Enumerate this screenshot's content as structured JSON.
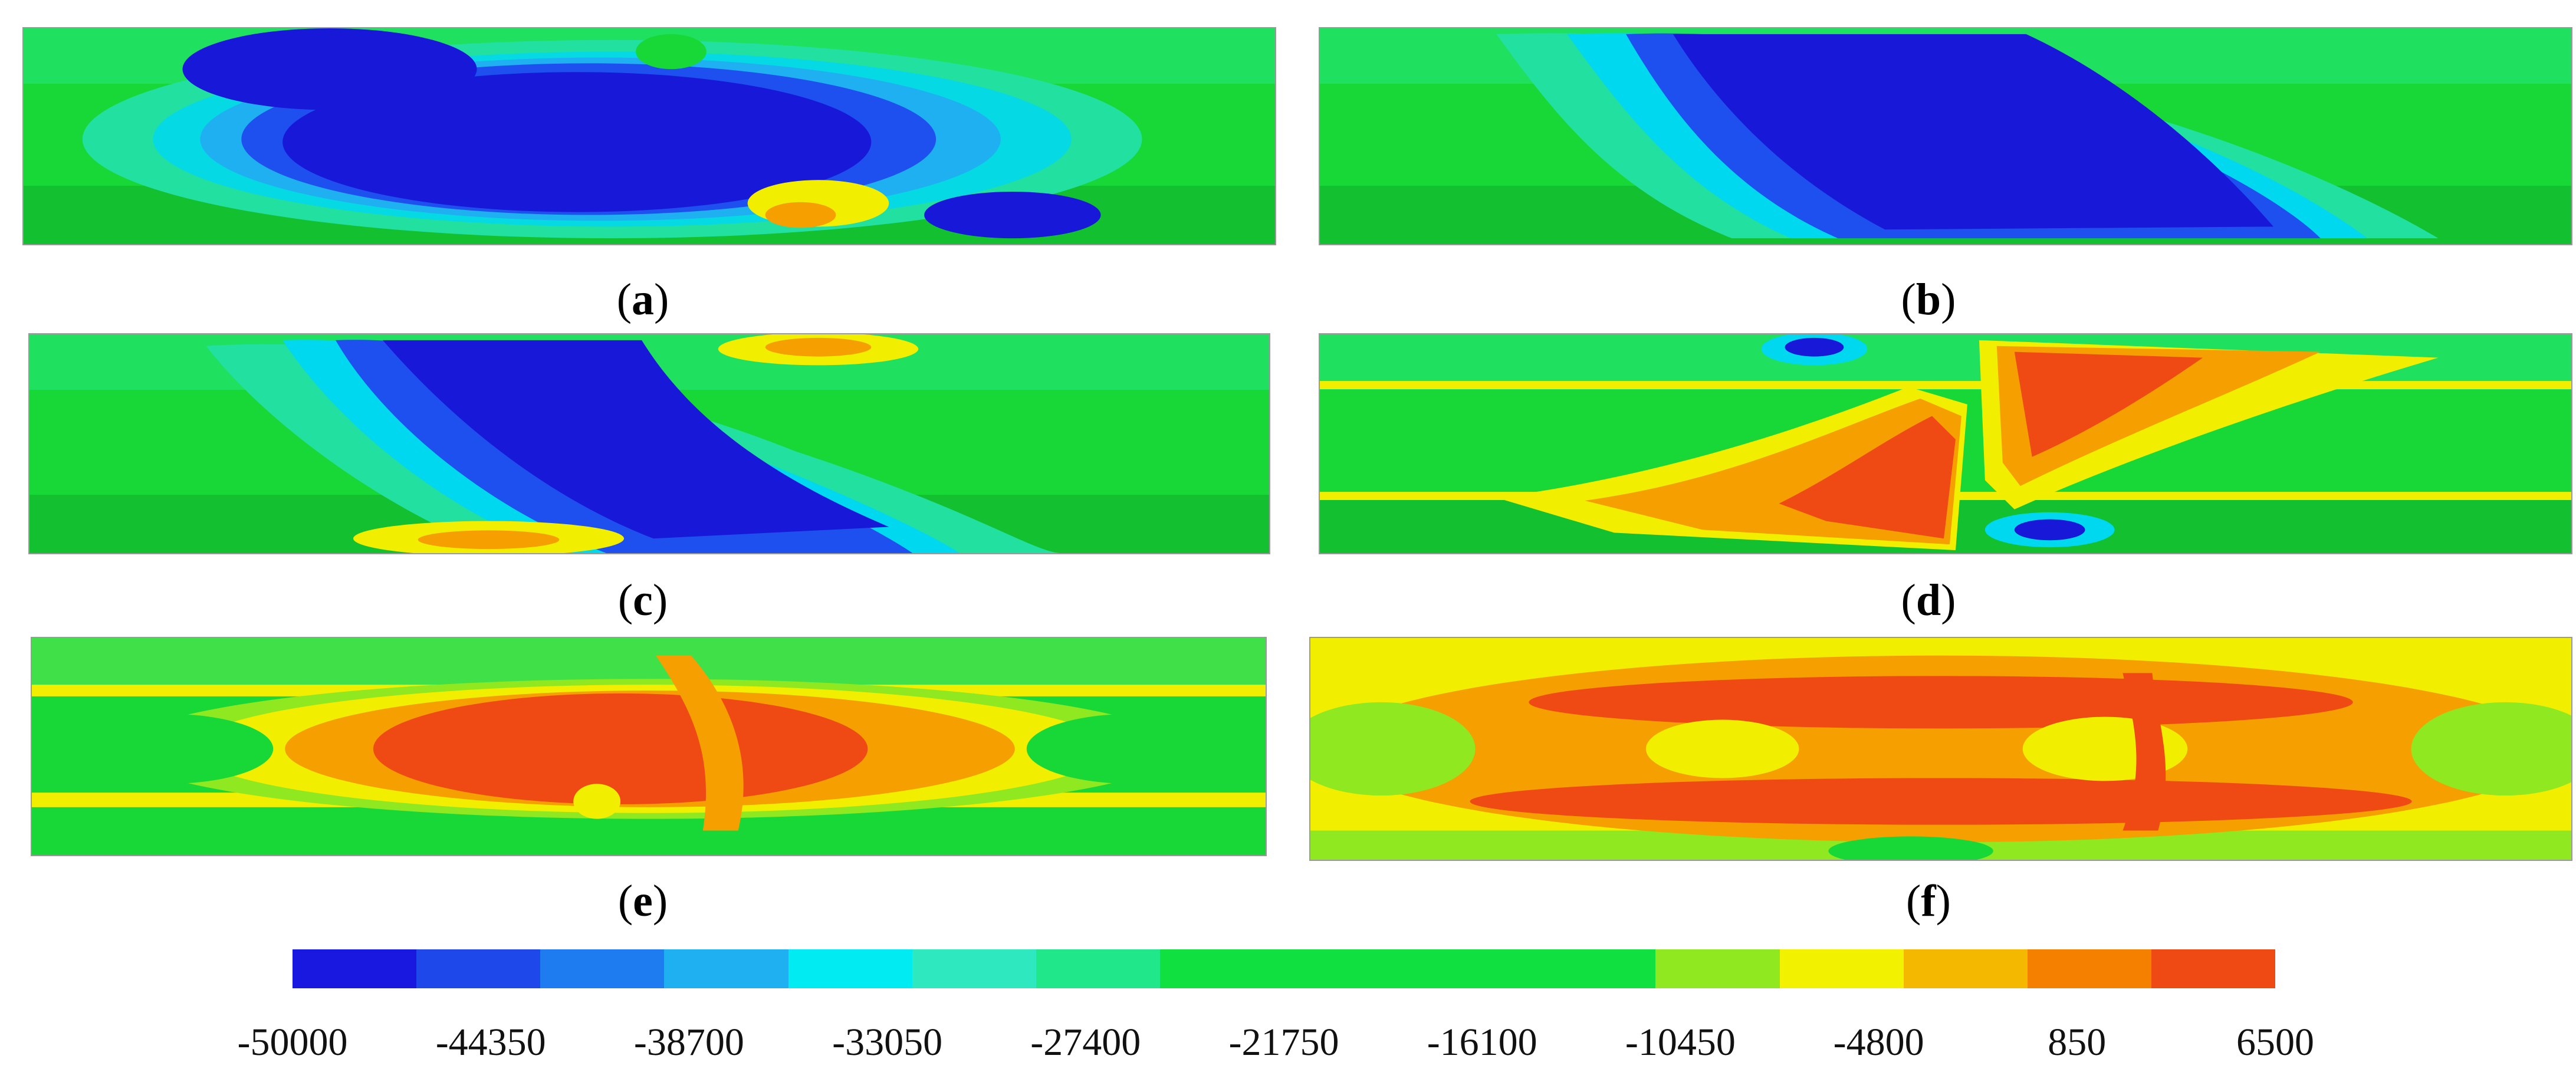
{
  "panels": [
    {
      "id": "a",
      "letter": "a"
    },
    {
      "id": "b",
      "letter": "b"
    },
    {
      "id": "c",
      "letter": "c"
    },
    {
      "id": "d",
      "letter": "d"
    },
    {
      "id": "e",
      "letter": "e"
    },
    {
      "id": "f",
      "letter": "f"
    }
  ],
  "colorbar": {
    "colors": [
      "#1818e0",
      "#1f48ea",
      "#1f7cf0",
      "#1fb0f2",
      "#00ecf2",
      "#2ee8c0",
      "#20e88a",
      "#10e040",
      "#10e040",
      "#10e040",
      "#10e040",
      "#8fe820",
      "#f2f200",
      "#f5b800",
      "#f58000",
      "#f04a14"
    ],
    "ticks": [
      "-50000",
      "-44350",
      "-38700",
      "-33050",
      "-27400",
      "-21750",
      "-16100",
      "-10450",
      "-4800",
      "850",
      "6500"
    ]
  },
  "palette": {
    "deep_blue": "#1818d8",
    "blue": "#1e50f0",
    "cyan": "#00d8f0",
    "teal": "#22e0a0",
    "green": "#18d838",
    "dark_green": "#12c030",
    "lime": "#90e820",
    "yellow": "#f2ee00",
    "orange": "#f5a000",
    "red": "#f04a14"
  }
}
